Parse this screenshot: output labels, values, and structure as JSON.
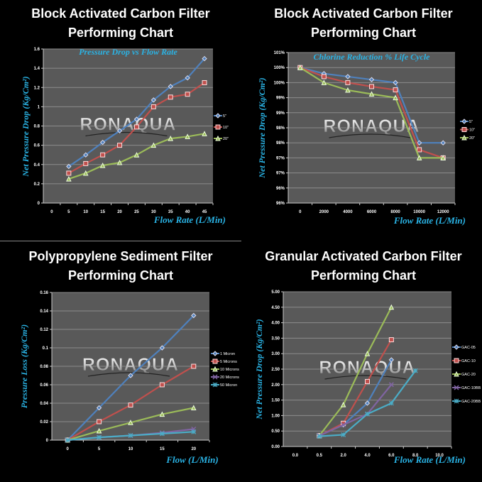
{
  "colors": {
    "blue": "#4f81bd",
    "red": "#c0504d",
    "green": "#9bbb59",
    "purple": "#8064a2",
    "cyan": "#4bacc6",
    "plot_bg": "#595959",
    "grid": "#8c8c8c",
    "axis_title": "#2ab4e6"
  },
  "watermark": "RONAQUA",
  "chart_data": [
    {
      "type": "line",
      "title": [
        "Block Activated Carbon Filter",
        "Performing Chart"
      ],
      "subtitle": "Pressure Drop vs Flow Rate",
      "xlabel": "Flow Rate (L/Min)",
      "ylabel": "Net Pressure Drop (Kg/Cm²)",
      "categories": [
        "0",
        "5",
        "10",
        "15",
        "20",
        "25",
        "30",
        "35",
        "40",
        "45"
      ],
      "ylim": [
        0,
        1.6
      ],
      "yticks": [
        "0",
        "0.2",
        "0.4",
        "0.6",
        "0.8",
        "1",
        "1.2",
        "1.4",
        "1.6"
      ],
      "grid": true,
      "legend": "right",
      "series": [
        {
          "name": "5\"",
          "color": "blue",
          "marker": "diamond",
          "values": [
            null,
            0.38,
            0.5,
            0.63,
            0.75,
            0.87,
            1.07,
            1.21,
            1.3,
            1.5
          ]
        },
        {
          "name": "10\"",
          "color": "red",
          "marker": "square",
          "values": [
            null,
            0.31,
            0.41,
            0.5,
            0.6,
            0.79,
            1.0,
            1.1,
            1.13,
            1.25
          ]
        },
        {
          "name": "20\"",
          "color": "green",
          "marker": "triangle",
          "values": [
            null,
            0.25,
            0.31,
            0.39,
            0.42,
            0.5,
            0.6,
            0.67,
            0.69,
            0.72
          ]
        }
      ]
    },
    {
      "type": "line",
      "title": [
        "Block Activated Carbon Filter",
        "Performing Chart"
      ],
      "subtitle": "Chlorine Reduction % Life Cycle",
      "xlabel": "Flow Rate (L/Min)",
      "ylabel": "Net Pressure Drop (Kg/Cm²)",
      "categories": [
        "0",
        "2000",
        "4000",
        "6000",
        "8000",
        "10000",
        "12000"
      ],
      "ylim": [
        96,
        101
      ],
      "yticks": [
        "96%",
        "96%",
        "97%",
        "97%",
        "98%",
        "98%",
        "99%",
        "99%",
        "100%",
        "100%",
        "101%"
      ],
      "grid": true,
      "legend": "right",
      "series": [
        {
          "name": "5\"",
          "color": "blue",
          "marker": "diamond",
          "values": [
            100.5,
            100.3,
            100.2,
            100.1,
            100.0,
            98.0,
            98.0
          ]
        },
        {
          "name": "10\"",
          "color": "red",
          "marker": "square",
          "values": [
            100.5,
            100.2,
            100.0,
            99.87,
            99.76,
            97.77,
            97.5
          ]
        },
        {
          "name": "20\"",
          "color": "green",
          "marker": "triangle",
          "values": [
            100.5,
            100.0,
            99.75,
            99.62,
            99.5,
            97.5,
            97.5
          ]
        }
      ]
    },
    {
      "type": "line",
      "title": [
        "Polypropylene Sediment Filter",
        "Performing Chart"
      ],
      "subtitle": "",
      "xlabel": "Flow (L/Min)",
      "ylabel": "Pressure Loss (Kg/Cm²)",
      "categories": [
        "0",
        "5",
        "10",
        "15",
        "20"
      ],
      "ylim": [
        0,
        0.16
      ],
      "yticks": [
        "0",
        "0.02",
        "0.04",
        "0.06",
        "0.08",
        "0.1",
        "0.12",
        "0.14",
        "0.16"
      ],
      "grid": true,
      "legend": "right",
      "series": [
        {
          "name": "1 Micron",
          "color": "blue",
          "marker": "diamond",
          "values": [
            0,
            0.035,
            0.07,
            0.1,
            0.135
          ]
        },
        {
          "name": "5 Microns",
          "color": "red",
          "marker": "square",
          "values": [
            0,
            0.02,
            0.038,
            0.06,
            0.08
          ]
        },
        {
          "name": "10 Microns",
          "color": "green",
          "marker": "triangle",
          "values": [
            0,
            0.01,
            0.019,
            0.028,
            0.035
          ]
        },
        {
          "name": "20 Microns",
          "color": "purple",
          "marker": "x",
          "values": [
            0,
            0.003,
            0.005,
            0.008,
            0.012
          ]
        },
        {
          "name": "50 Micron",
          "color": "cyan",
          "marker": "star",
          "values": [
            0,
            0.003,
            0.005,
            0.007,
            0.009
          ]
        }
      ]
    },
    {
      "type": "line",
      "title": [
        "Granular Activated Carbon Filter",
        "Performing Chart"
      ],
      "subtitle": "",
      "xlabel": "Flow Rate (L/Min)",
      "ylabel": "Net Pressure Drop (Kg/Cm²)",
      "categories": [
        "0.0",
        "0.5",
        "2.0",
        "4.0",
        "6.0",
        "8.0",
        "10.0"
      ],
      "ylim": [
        0,
        5
      ],
      "yticks": [
        "0.00",
        "0.50",
        "1.00",
        "1.50",
        "2.00",
        "2.50",
        "3.00",
        "3.50",
        "4.00",
        "4.50",
        "5.00"
      ],
      "grid": true,
      "legend": "right",
      "series": [
        {
          "name": "GAC-05",
          "color": "blue",
          "marker": "diamond",
          "values": [
            null,
            0.35,
            0.7,
            1.4,
            2.8,
            null,
            null
          ]
        },
        {
          "name": "GAC-10",
          "color": "red",
          "marker": "square",
          "values": [
            null,
            0.35,
            0.75,
            2.1,
            3.45,
            null,
            null
          ]
        },
        {
          "name": "GAC-20",
          "color": "green",
          "marker": "triangle",
          "values": [
            null,
            0.35,
            1.35,
            3.0,
            4.5,
            null,
            null
          ]
        },
        {
          "name": "GAC-10BB",
          "color": "purple",
          "marker": "x",
          "values": [
            null,
            0.35,
            0.7,
            1.05,
            2.0,
            null,
            null
          ]
        },
        {
          "name": "GAC-20BB",
          "color": "cyan",
          "marker": "star",
          "values": [
            null,
            0.33,
            0.38,
            1.05,
            1.4,
            2.45,
            null
          ]
        }
      ]
    }
  ]
}
